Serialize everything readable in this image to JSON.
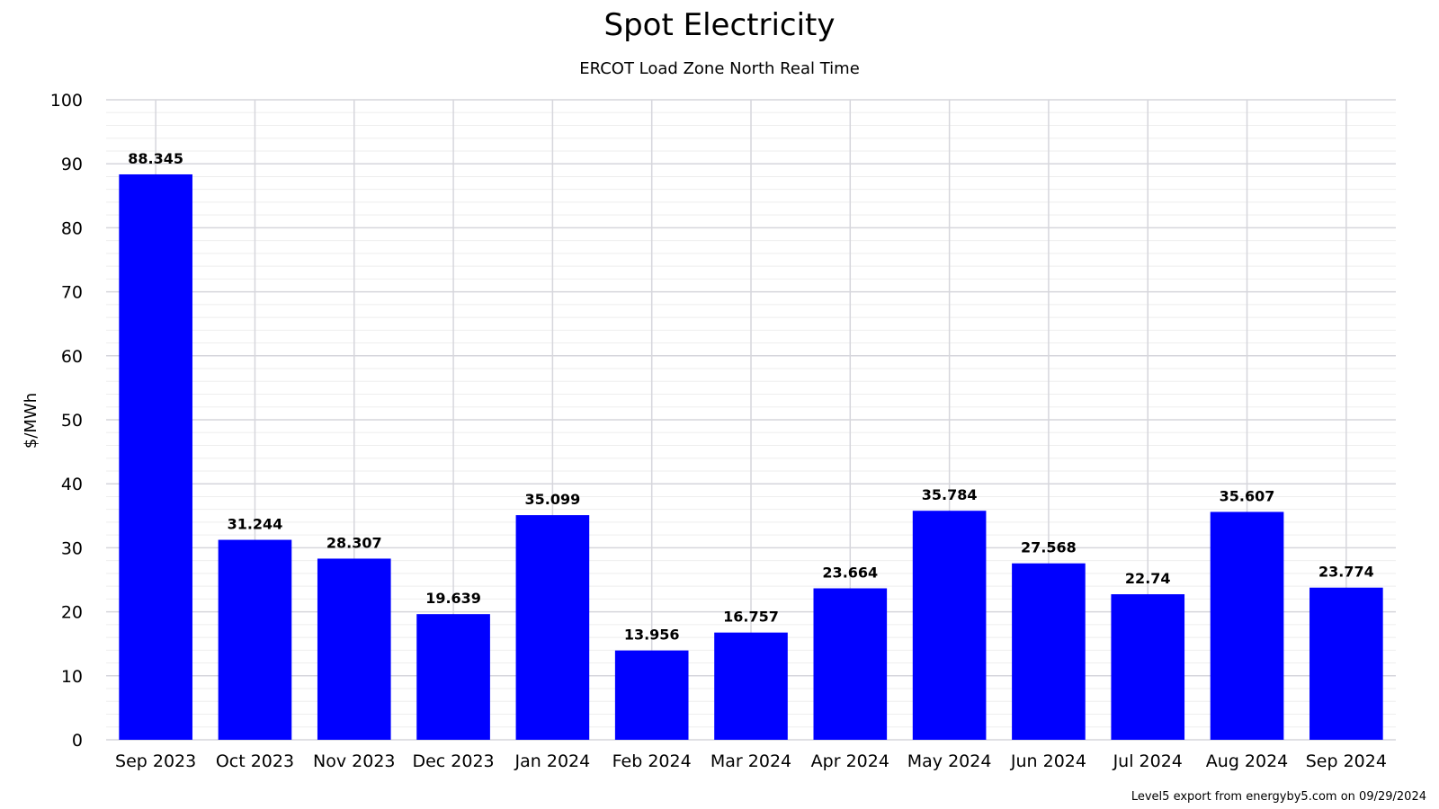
{
  "chart_data": {
    "type": "bar",
    "title": "Spot Electricity",
    "subtitle": "ERCOT Load Zone North Real Time",
    "ylabel": "$/MWh",
    "xlabel": "",
    "ylim": [
      0,
      100
    ],
    "yticks": [
      0,
      10,
      20,
      30,
      40,
      50,
      60,
      70,
      80,
      90,
      100
    ],
    "grid": true,
    "bar_color": "#0000ff",
    "categories": [
      "Sep 2023",
      "Oct 2023",
      "Nov 2023",
      "Dec 2023",
      "Jan 2024",
      "Feb 2024",
      "Mar 2024",
      "Apr 2024",
      "May 2024",
      "Jun 2024",
      "Jul 2024",
      "Aug 2024",
      "Sep 2024"
    ],
    "values": [
      88.345,
      31.244,
      28.307,
      19.639,
      35.099,
      13.956,
      16.757,
      23.664,
      35.784,
      27.568,
      22.74,
      35.607,
      23.774
    ],
    "data_labels": [
      "88.345",
      "31.244",
      "28.307",
      "19.639",
      "35.099",
      "13.956",
      "16.757",
      "23.664",
      "35.784",
      "27.568",
      "22.74",
      "35.607",
      "23.774"
    ]
  },
  "footer": {
    "credit": "Level5 export from energyby5.com on 09/29/2024"
  }
}
